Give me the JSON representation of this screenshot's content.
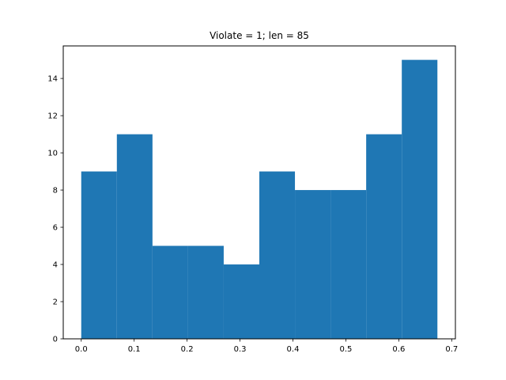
{
  "chart_data": {
    "type": "bar",
    "subtype": "histogram",
    "title": "Violate = 1; len = 85",
    "xlabel": "",
    "ylabel": "",
    "bar_color": "#1f77b4",
    "bin_edges": [
      0.0,
      0.0673,
      0.1346,
      0.2019,
      0.2692,
      0.3365,
      0.4038,
      0.4711,
      0.5384,
      0.6057,
      0.673
    ],
    "values": [
      9,
      11,
      5,
      5,
      4,
      9,
      8,
      8,
      11,
      15
    ],
    "xlim": [
      -0.034,
      0.707
    ],
    "ylim": [
      0,
      15.75
    ],
    "xticks": [
      0.0,
      0.1,
      0.2,
      0.3,
      0.4,
      0.5,
      0.6,
      0.7
    ],
    "xtick_labels": [
      "0.0",
      "0.1",
      "0.2",
      "0.3",
      "0.4",
      "0.5",
      "0.6",
      "0.7"
    ],
    "yticks": [
      0,
      2,
      4,
      6,
      8,
      10,
      12,
      14
    ],
    "ytick_labels": [
      "0",
      "2",
      "4",
      "6",
      "8",
      "10",
      "12",
      "14"
    ],
    "grid": false,
    "legend": "none"
  }
}
